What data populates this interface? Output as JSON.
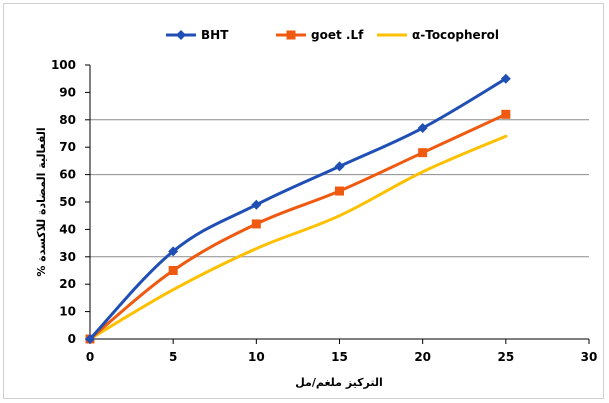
{
  "chart_data": {
    "type": "line",
    "xlabel": "التركيز ملغم/مل",
    "ylabel": "الفعالية المضادة للاكسدة %",
    "xlim": [
      0,
      30
    ],
    "ylim": [
      0,
      100
    ],
    "x_ticks": [
      0,
      5,
      10,
      15,
      20,
      25,
      30
    ],
    "y_ticks": [
      0,
      10,
      20,
      30,
      40,
      50,
      60,
      70,
      80,
      90,
      100
    ],
    "grid": "horizontal at 30, 60, 80",
    "legend_position": "top",
    "series": [
      {
        "name": "BHT",
        "color": "#1f4fb4",
        "marker": "diamond",
        "x": [
          0,
          5,
          10,
          15,
          20,
          25
        ],
        "y": [
          0,
          32,
          49,
          63,
          77,
          95
        ]
      },
      {
        "name": "goet .Lf",
        "color": "#f05a10",
        "marker": "square",
        "x": [
          0,
          5,
          10,
          15,
          20,
          25
        ],
        "y": [
          0,
          25,
          42,
          54,
          68,
          82
        ]
      },
      {
        "name": "α-Tocopherol",
        "color": "#ffc000",
        "marker": "none",
        "x": [
          0,
          5,
          10,
          15,
          20,
          25
        ],
        "y": [
          0,
          18,
          33,
          45,
          61,
          74
        ]
      }
    ]
  }
}
